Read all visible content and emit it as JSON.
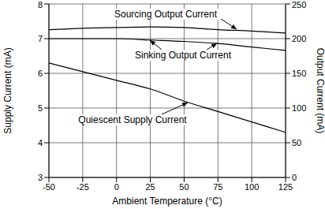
{
  "chart_data": {
    "type": "line",
    "xlabel": "Ambient Temperature (°C)",
    "ylabel": "Supply Current (mA)",
    "y2label": "Output Current (mA)",
    "x": [
      -50,
      -25,
      0,
      25,
      50,
      75,
      100,
      125
    ],
    "xlim": [
      -50,
      125
    ],
    "xticks": [
      -50,
      -25,
      0,
      25,
      50,
      75,
      100,
      125
    ],
    "ylim": [
      3,
      8
    ],
    "yticks": [
      3,
      4,
      5,
      6,
      7,
      8
    ],
    "y2lim": [
      0,
      250
    ],
    "y2ticks": [
      0,
      50,
      100,
      150,
      200,
      250
    ],
    "grid": true,
    "series": [
      {
        "name": "Sourcing Output Current",
        "color": "#000000",
        "axis": "y2",
        "marker": "none",
        "line_style": "solid",
        "values": [
          213,
          215,
          216,
          217,
          216,
          213,
          211,
          208
        ]
      },
      {
        "name": "Sinking Output Current",
        "color": "#000000",
        "axis": "y2",
        "marker": "none",
        "line_style": "solid",
        "values": [
          200,
          200,
          200,
          198,
          196,
          193,
          188,
          183
        ]
      },
      {
        "name": "Quiescent Supply Current",
        "color": "#000000",
        "axis": "y",
        "marker": "none",
        "line_style": "solid",
        "values": [
          6.3,
          6.05,
          5.8,
          5.55,
          5.2,
          4.9,
          4.6,
          4.3
        ]
      }
    ]
  }
}
